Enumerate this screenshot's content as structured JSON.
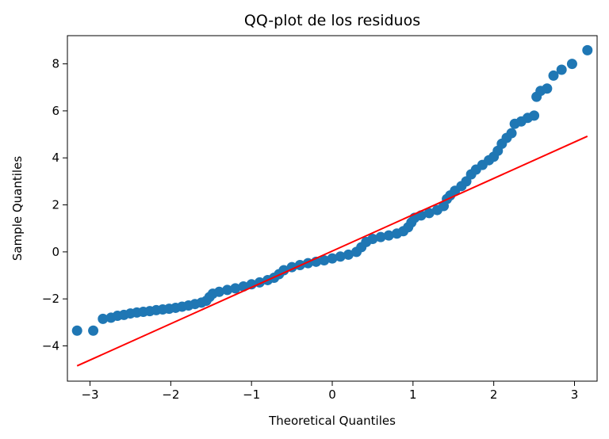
{
  "chart_data": {
    "type": "scatter",
    "title": "QQ-plot de los residuos",
    "xlabel": "Theoretical Quantiles",
    "ylabel": "Sample Quantiles",
    "xlim": [
      -3.28,
      3.28
    ],
    "ylim": [
      -5.5,
      9.2
    ],
    "xticks": [
      -3,
      -2,
      -1,
      0,
      1,
      2,
      3
    ],
    "xtick_labels": [
      "−3",
      "−2",
      "−1",
      "0",
      "1",
      "2",
      "3"
    ],
    "yticks": [
      -4,
      -2,
      0,
      2,
      4,
      6,
      8
    ],
    "ytick_labels": [
      "−4",
      "−2",
      "0",
      "2",
      "4",
      "6",
      "8"
    ],
    "grid": false,
    "series": [
      {
        "kind": "points",
        "color": "#1f77b4",
        "points": [
          [
            -3.16,
            -3.35
          ],
          [
            -2.96,
            -3.35
          ],
          [
            -2.84,
            -2.85
          ],
          [
            -2.74,
            -2.8
          ],
          [
            -2.66,
            -2.72
          ],
          [
            -2.58,
            -2.68
          ],
          [
            -2.5,
            -2.62
          ],
          [
            -2.42,
            -2.58
          ],
          [
            -2.34,
            -2.55
          ],
          [
            -2.26,
            -2.52
          ],
          [
            -2.18,
            -2.48
          ],
          [
            -2.1,
            -2.45
          ],
          [
            -2.02,
            -2.42
          ],
          [
            -1.94,
            -2.38
          ],
          [
            -1.86,
            -2.33
          ],
          [
            -1.78,
            -2.28
          ],
          [
            -1.7,
            -2.22
          ],
          [
            -1.62,
            -2.16
          ],
          [
            -1.56,
            -2.08
          ],
          [
            -1.52,
            -1.92
          ],
          [
            -1.48,
            -1.78
          ],
          [
            -1.4,
            -1.7
          ],
          [
            -1.3,
            -1.62
          ],
          [
            -1.2,
            -1.55
          ],
          [
            -1.1,
            -1.47
          ],
          [
            -1.0,
            -1.38
          ],
          [
            -0.9,
            -1.3
          ],
          [
            -0.8,
            -1.2
          ],
          [
            -0.72,
            -1.1
          ],
          [
            -0.66,
            -0.95
          ],
          [
            -0.6,
            -0.78
          ],
          [
            -0.5,
            -0.65
          ],
          [
            -0.4,
            -0.56
          ],
          [
            -0.3,
            -0.48
          ],
          [
            -0.2,
            -0.42
          ],
          [
            -0.1,
            -0.36
          ],
          [
            0.0,
            -0.28
          ],
          [
            0.1,
            -0.2
          ],
          [
            0.2,
            -0.12
          ],
          [
            0.3,
            0.0
          ],
          [
            0.36,
            0.2
          ],
          [
            0.42,
            0.42
          ],
          [
            0.5,
            0.55
          ],
          [
            0.6,
            0.63
          ],
          [
            0.7,
            0.7
          ],
          [
            0.8,
            0.78
          ],
          [
            0.88,
            0.88
          ],
          [
            0.94,
            1.05
          ],
          [
            0.98,
            1.25
          ],
          [
            1.02,
            1.45
          ],
          [
            1.1,
            1.55
          ],
          [
            1.2,
            1.65
          ],
          [
            1.3,
            1.78
          ],
          [
            1.38,
            1.95
          ],
          [
            1.42,
            2.25
          ],
          [
            1.46,
            2.4
          ],
          [
            1.52,
            2.6
          ],
          [
            1.6,
            2.8
          ],
          [
            1.66,
            3.0
          ],
          [
            1.72,
            3.3
          ],
          [
            1.78,
            3.5
          ],
          [
            1.86,
            3.7
          ],
          [
            1.94,
            3.9
          ],
          [
            2.0,
            4.05
          ],
          [
            2.05,
            4.3
          ],
          [
            2.1,
            4.6
          ],
          [
            2.16,
            4.85
          ],
          [
            2.22,
            5.05
          ],
          [
            2.26,
            5.45
          ],
          [
            2.34,
            5.55
          ],
          [
            2.42,
            5.7
          ],
          [
            2.5,
            5.8
          ],
          [
            2.53,
            6.6
          ],
          [
            2.58,
            6.85
          ],
          [
            2.66,
            6.95
          ],
          [
            2.74,
            7.5
          ],
          [
            2.84,
            7.75
          ],
          [
            2.97,
            8.0
          ],
          [
            3.16,
            8.58
          ]
        ]
      },
      {
        "kind": "line",
        "color": "#ff0000",
        "x": [
          -3.16,
          3.16
        ],
        "y": [
          -4.85,
          4.92
        ]
      }
    ]
  }
}
